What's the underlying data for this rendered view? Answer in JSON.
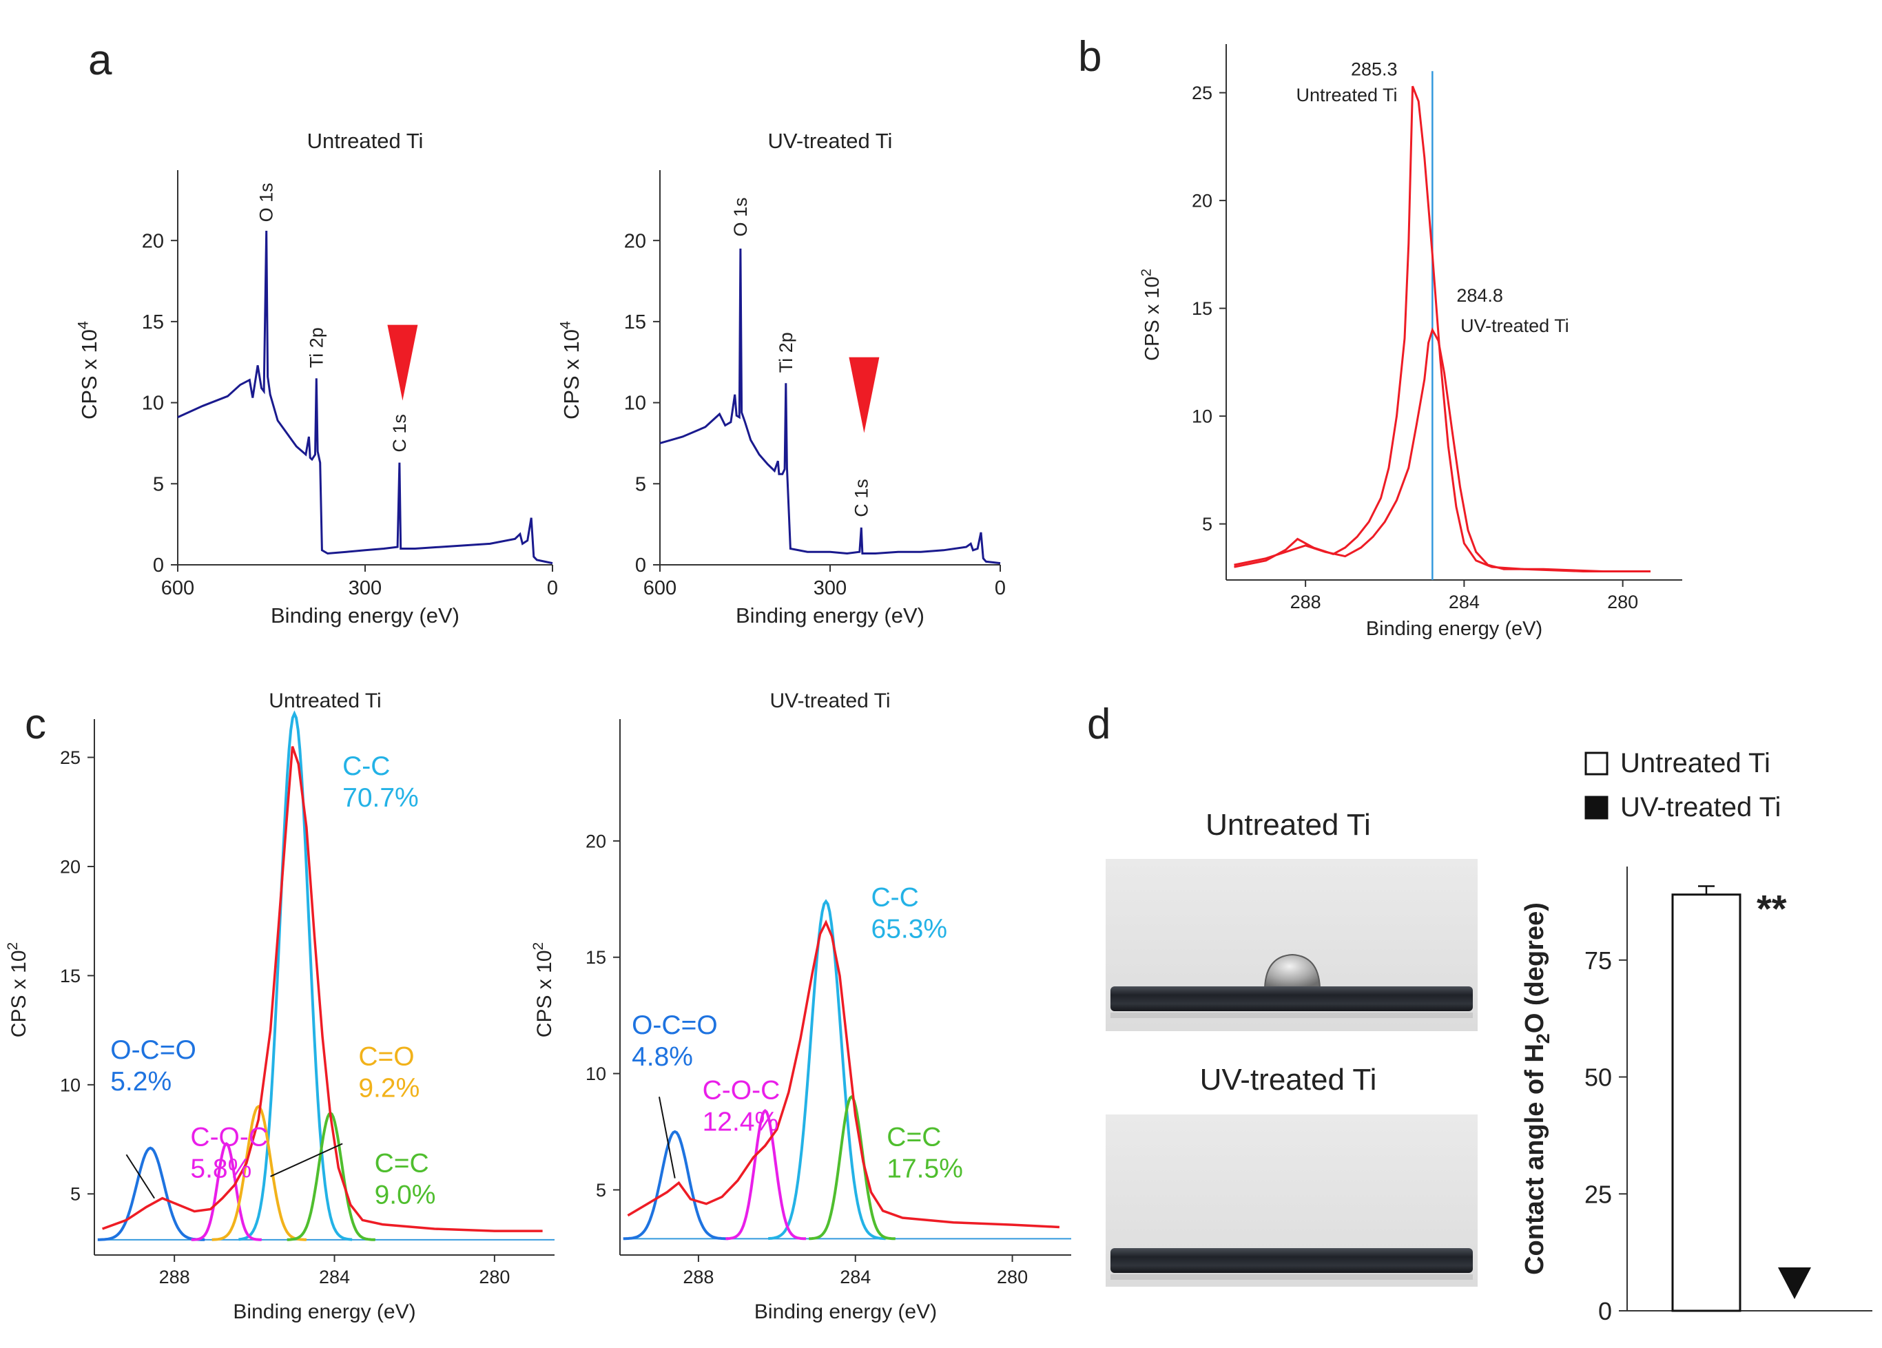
{
  "colors": {
    "survey_line": "#1a1a8e",
    "envelope": "#ee1c25",
    "marker": "#ee1c25",
    "reference_line": "#3399dd",
    "cc": "#23b2e6",
    "occo": "#1e73e0",
    "coc": "#e91ee9",
    "co": "#f2b21a",
    "ceqc": "#4fbe2e",
    "baseline": "#3399dd"
  },
  "panel_labels": {
    "a": "a",
    "b": "b",
    "c": "c",
    "d": "d"
  },
  "chart_data": [
    {
      "id": "a-untreated",
      "type": "line",
      "title": "Untreated Ti",
      "xlabel": "Binding energy (eV)",
      "ylabel": "CPS x 10",
      "ylabel_exponent": "4",
      "xlim": [
        600,
        0
      ],
      "ylim": [
        0,
        24
      ],
      "xticks": [
        600,
        300,
        0
      ],
      "yticks": [
        0,
        5,
        10,
        15,
        20
      ],
      "points": [
        [
          600,
          9.1
        ],
        [
          560,
          9.8
        ],
        [
          520,
          10.4
        ],
        [
          500,
          11.1
        ],
        [
          485,
          11.4
        ],
        [
          480,
          10.3
        ],
        [
          472,
          12.3
        ],
        [
          466,
          10.9
        ],
        [
          462,
          10.7
        ],
        [
          458,
          20.6
        ],
        [
          456,
          11.6
        ],
        [
          452,
          10.5
        ],
        [
          440,
          8.9
        ],
        [
          425,
          8.1
        ],
        [
          410,
          7.3
        ],
        [
          395,
          6.8
        ],
        [
          390,
          7.9
        ],
        [
          388,
          6.6
        ],
        [
          385,
          6.5
        ],
        [
          380,
          6.8
        ],
        [
          378,
          11.5
        ],
        [
          376,
          7.0
        ],
        [
          372,
          6.3
        ],
        [
          369,
          0.9
        ],
        [
          360,
          0.7
        ],
        [
          330,
          0.8
        ],
        [
          300,
          0.9
        ],
        [
          270,
          1.0
        ],
        [
          248,
          1.1
        ],
        [
          245,
          6.3
        ],
        [
          243,
          1.0
        ],
        [
          220,
          1.0
        ],
        [
          180,
          1.1
        ],
        [
          140,
          1.2
        ],
        [
          100,
          1.3
        ],
        [
          60,
          1.6
        ],
        [
          52,
          1.9
        ],
        [
          48,
          1.3
        ],
        [
          40,
          1.5
        ],
        [
          34,
          2.9
        ],
        [
          30,
          0.5
        ],
        [
          25,
          0.3
        ],
        [
          0,
          0.1
        ]
      ],
      "annotations": [
        {
          "text": "O 1s",
          "x": 458,
          "y": 20.8
        },
        {
          "text": "Ti 2p",
          "x": 378,
          "y": 11.8
        },
        {
          "text": "C 1s",
          "x": 245,
          "y": 6.6
        }
      ],
      "marker": {
        "shape": "triangle-down",
        "x": 240,
        "y": 14.8
      }
    },
    {
      "id": "a-uv",
      "type": "line",
      "title": "UV-treated Ti",
      "xlabel": "Binding energy (eV)",
      "ylabel": "CPS x 10",
      "ylabel_exponent": "4",
      "xlim": [
        600,
        0
      ],
      "ylim": [
        0,
        24
      ],
      "xticks": [
        600,
        300,
        0
      ],
      "yticks": [
        0,
        5,
        10,
        15,
        20
      ],
      "points": [
        [
          600,
          7.5
        ],
        [
          560,
          7.9
        ],
        [
          520,
          8.5
        ],
        [
          495,
          9.3
        ],
        [
          485,
          8.6
        ],
        [
          475,
          8.8
        ],
        [
          468,
          10.5
        ],
        [
          465,
          9.2
        ],
        [
          460,
          9.1
        ],
        [
          458,
          19.5
        ],
        [
          456,
          9.4
        ],
        [
          450,
          8.8
        ],
        [
          440,
          7.7
        ],
        [
          425,
          6.8
        ],
        [
          410,
          6.2
        ],
        [
          398,
          5.8
        ],
        [
          392,
          6.4
        ],
        [
          390,
          5.6
        ],
        [
          384,
          5.6
        ],
        [
          380,
          5.9
        ],
        [
          378,
          11.2
        ],
        [
          376,
          6.0
        ],
        [
          370,
          1.0
        ],
        [
          340,
          0.8
        ],
        [
          300,
          0.8
        ],
        [
          270,
          0.7
        ],
        [
          248,
          0.8
        ],
        [
          245,
          2.3
        ],
        [
          243,
          0.7
        ],
        [
          220,
          0.7
        ],
        [
          180,
          0.8
        ],
        [
          140,
          0.8
        ],
        [
          100,
          0.9
        ],
        [
          60,
          1.1
        ],
        [
          52,
          1.3
        ],
        [
          48,
          0.9
        ],
        [
          40,
          1.0
        ],
        [
          34,
          2.0
        ],
        [
          30,
          0.4
        ],
        [
          25,
          0.2
        ],
        [
          0,
          0.1
        ]
      ],
      "annotations": [
        {
          "text": "O 1s",
          "x": 458,
          "y": 19.9
        },
        {
          "text": "Ti 2p",
          "x": 378,
          "y": 11.5
        },
        {
          "text": "C 1s",
          "x": 245,
          "y": 2.6
        }
      ],
      "marker": {
        "shape": "triangle-down",
        "x": 240,
        "y": 12.8
      }
    },
    {
      "id": "b",
      "type": "line",
      "title": "",
      "xlabel": "Binding energy (eV)",
      "ylabel": "CPS x 10",
      "ylabel_exponent": "2",
      "xlim": [
        290,
        278.5
      ],
      "ylim": [
        2.4,
        27
      ],
      "xticks": [
        288,
        284,
        280
      ],
      "yticks": [
        5,
        10,
        15,
        20,
        25
      ],
      "reference_line": {
        "x": 284.8,
        "y_top": 26
      },
      "series": [
        {
          "name": "Untreated Ti",
          "points": [
            [
              289.8,
              3.0
            ],
            [
              289,
              3.3
            ],
            [
              288.5,
              3.8
            ],
            [
              288.2,
              4.3
            ],
            [
              287.8,
              3.9
            ],
            [
              287.3,
              3.6
            ],
            [
              287,
              3.9
            ],
            [
              286.7,
              4.4
            ],
            [
              286.4,
              5.1
            ],
            [
              286.1,
              6.2
            ],
            [
              285.9,
              7.6
            ],
            [
              285.7,
              10.0
            ],
            [
              285.5,
              13.6
            ],
            [
              285.4,
              18.0
            ],
            [
              285.3,
              25.3
            ],
            [
              285.15,
              24.6
            ],
            [
              285,
              22.0
            ],
            [
              284.8,
              17.5
            ],
            [
              284.6,
              12.6
            ],
            [
              284.4,
              8.6
            ],
            [
              284.2,
              5.8
            ],
            [
              284,
              4.1
            ],
            [
              283.7,
              3.3
            ],
            [
              283.3,
              3.0
            ],
            [
              282.5,
              2.9
            ],
            [
              281,
              2.8
            ],
            [
              279.3,
              2.8
            ]
          ]
        },
        {
          "name": "UV-treated Ti",
          "points": [
            [
              289.8,
              3.1
            ],
            [
              289,
              3.4
            ],
            [
              288.5,
              3.7
            ],
            [
              288,
              4.0
            ],
            [
              287.5,
              3.7
            ],
            [
              287,
              3.5
            ],
            [
              286.6,
              3.9
            ],
            [
              286.3,
              4.4
            ],
            [
              286,
              5.1
            ],
            [
              285.7,
              6.1
            ],
            [
              285.4,
              7.6
            ],
            [
              285.2,
              9.6
            ],
            [
              285,
              11.7
            ],
            [
              284.9,
              13.4
            ],
            [
              284.8,
              14.0
            ],
            [
              284.65,
              13.5
            ],
            [
              284.5,
              12.0
            ],
            [
              284.3,
              9.3
            ],
            [
              284.1,
              6.7
            ],
            [
              283.9,
              4.7
            ],
            [
              283.7,
              3.7
            ],
            [
              283.4,
              3.1
            ],
            [
              283,
              2.9
            ],
            [
              282,
              2.9
            ],
            [
              280.5,
              2.8
            ],
            [
              279.3,
              2.8
            ]
          ]
        }
      ],
      "annotations": [
        {
          "text": "285.3",
          "x": 285.3,
          "y": 25.8
        },
        {
          "text": "Untreated Ti",
          "x": 285.3,
          "y": 24.6
        },
        {
          "text": "284.8",
          "x": 284.4,
          "y": 15.3
        },
        {
          "text": "UV-treated Ti",
          "x": 284.3,
          "y": 13.9
        }
      ]
    },
    {
      "id": "c-untreated",
      "type": "line",
      "title": "Untreated Ti",
      "xlabel": "Binding energy (eV)",
      "ylabel": "CPS x 10",
      "ylabel_exponent": "2",
      "xlim": [
        290,
        278.5
      ],
      "ylim": [
        2.2,
        26.5
      ],
      "xticks": [
        288,
        284,
        280
      ],
      "yticks": [
        5,
        10,
        15,
        20,
        25
      ],
      "baseline": 2.9,
      "envelope": [
        [
          289.8,
          3.4
        ],
        [
          289.2,
          3.8
        ],
        [
          288.7,
          4.4
        ],
        [
          288.3,
          4.8
        ],
        [
          287.9,
          4.5
        ],
        [
          287.5,
          4.2
        ],
        [
          287.1,
          4.3
        ],
        [
          286.8,
          4.8
        ],
        [
          286.5,
          5.4
        ],
        [
          286.2,
          6.4
        ],
        [
          285.9,
          8.4
        ],
        [
          285.6,
          12.5
        ],
        [
          285.4,
          17.2
        ],
        [
          285.2,
          22.0
        ],
        [
          285.05,
          25.5
        ],
        [
          284.9,
          24.7
        ],
        [
          284.7,
          21.8
        ],
        [
          284.5,
          16.8
        ],
        [
          284.3,
          12.2
        ],
        [
          284.1,
          8.6
        ],
        [
          283.9,
          6.2
        ],
        [
          283.6,
          4.5
        ],
        [
          283.3,
          3.8
        ],
        [
          282.8,
          3.6
        ],
        [
          281.5,
          3.4
        ],
        [
          280,
          3.3
        ],
        [
          278.8,
          3.3
        ]
      ],
      "components": [
        {
          "name": "C-C",
          "pct": "70.7%",
          "center": 285.0,
          "height": 24.1,
          "sigma": 0.36
        },
        {
          "name": "O-C=O",
          "pct": "5.2%",
          "center": 288.6,
          "height": 4.2,
          "sigma": 0.34
        },
        {
          "name": "C-O-C",
          "pct": "5.8%",
          "center": 286.7,
          "height": 4.4,
          "sigma": 0.22
        },
        {
          "name": "C=O",
          "pct": "9.2%",
          "center": 285.9,
          "height": 6.1,
          "sigma": 0.3
        },
        {
          "name": "C=C",
          "pct": "9.0%",
          "center": 284.1,
          "height": 5.8,
          "sigma": 0.28
        }
      ],
      "labels": [
        {
          "component": "C-C",
          "x": 283.8,
          "y": 24.2
        },
        {
          "component": "O-C=O",
          "x": 289.6,
          "y": 11.2
        },
        {
          "component": "C-O-C",
          "x": 287.6,
          "y": 7.2
        },
        {
          "component": "C=O",
          "x": 283.4,
          "y": 10.9
        },
        {
          "component": "C=C",
          "x": 283.0,
          "y": 6.0
        }
      ],
      "leaders": [
        {
          "from": [
            289.2,
            6.8
          ],
          "to": [
            288.5,
            4.8
          ]
        },
        {
          "from": [
            283.8,
            7.3
          ],
          "to": [
            285.6,
            5.8
          ]
        }
      ]
    },
    {
      "id": "c-uv",
      "type": "line",
      "title": "UV-treated Ti",
      "xlabel": "Binding energy (eV)",
      "ylabel": "CPS x 10",
      "ylabel_exponent": "2",
      "xlim": [
        290,
        278.5
      ],
      "ylim": [
        2.2,
        25
      ],
      "xticks": [
        288,
        284,
        280
      ],
      "yticks": [
        5,
        10,
        15,
        20
      ],
      "baseline": 2.9,
      "envelope": [
        [
          289.8,
          3.9
        ],
        [
          289.3,
          4.4
        ],
        [
          288.8,
          4.9
        ],
        [
          288.5,
          5.3
        ],
        [
          288.2,
          4.6
        ],
        [
          287.8,
          4.4
        ],
        [
          287.4,
          4.7
        ],
        [
          287.0,
          5.4
        ],
        [
          286.6,
          6.4
        ],
        [
          286.3,
          6.9
        ],
        [
          286.0,
          7.6
        ],
        [
          285.7,
          9.2
        ],
        [
          285.4,
          11.5
        ],
        [
          285.1,
          14.3
        ],
        [
          284.9,
          16.0
        ],
        [
          284.75,
          16.5
        ],
        [
          284.6,
          15.9
        ],
        [
          284.4,
          14.2
        ],
        [
          284.2,
          11.2
        ],
        [
          284.0,
          8.2
        ],
        [
          283.8,
          6.2
        ],
        [
          283.6,
          4.9
        ],
        [
          283.3,
          4.1
        ],
        [
          282.8,
          3.8
        ],
        [
          281.5,
          3.6
        ],
        [
          280,
          3.5
        ],
        [
          278.8,
          3.4
        ]
      ],
      "components": [
        {
          "name": "C-C",
          "pct": "65.3%",
          "center": 284.75,
          "height": 14.5,
          "sigma": 0.38
        },
        {
          "name": "O-C=O",
          "pct": "4.8%",
          "center": 288.6,
          "height": 4.6,
          "sigma": 0.34
        },
        {
          "name": "C-O-C",
          "pct": "12.4%",
          "center": 286.3,
          "height": 5.5,
          "sigma": 0.26
        },
        {
          "name": "C=C",
          "pct": "17.5%",
          "center": 284.1,
          "height": 6.1,
          "sigma": 0.28
        }
      ],
      "labels": [
        {
          "component": "C-C",
          "x": 283.6,
          "y": 17.2
        },
        {
          "component": "O-C=O",
          "x": 289.7,
          "y": 11.7
        },
        {
          "component": "C-O-C",
          "x": 287.9,
          "y": 8.9
        },
        {
          "component": "C=C",
          "x": 283.2,
          "y": 6.9
        }
      ],
      "leaders": [
        {
          "from": [
            289.0,
            9.0
          ],
          "to": [
            288.6,
            5.5
          ]
        }
      ]
    },
    {
      "id": "d",
      "type": "bar",
      "ylabel_prefix": "Contact angle of H",
      "ylabel_sub": "2",
      "ylabel_suffix": "O (degree)",
      "ylim": [
        0,
        95
      ],
      "yticks": [
        0,
        25,
        50,
        75
      ],
      "categories": [
        "Untreated Ti",
        "UV-treated Ti"
      ],
      "values": [
        89,
        0
      ],
      "error": [
        1.8,
        0
      ],
      "fills": [
        "#ffffff",
        "#111111"
      ],
      "significance": "**",
      "zero_marker": "triangle-down"
    }
  ],
  "photos": {
    "untreated_title": "Untreated Ti",
    "uv_title": "UV-treated Ti"
  }
}
